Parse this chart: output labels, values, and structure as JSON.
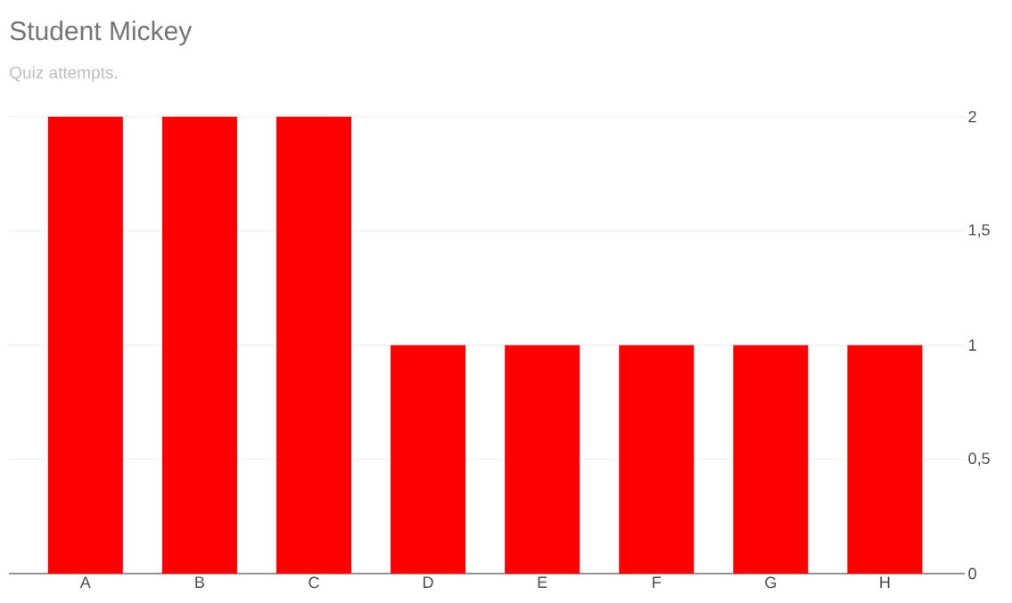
{
  "chart_data": {
    "type": "bar",
    "title": "Student Mickey",
    "subtitle": "Quiz attempts.",
    "categories": [
      "A",
      "B",
      "C",
      "D",
      "E",
      "F",
      "G",
      "H"
    ],
    "values": [
      2,
      2,
      2,
      1,
      1,
      1,
      1,
      1
    ],
    "color": "#ff0000",
    "ylim": [
      0,
      2
    ],
    "yticks": [
      0,
      {
        "value": 0.5,
        "label": "0,5"
      },
      1,
      {
        "value": 1.5,
        "label": "1,5"
      },
      2
    ],
    "grid": "y"
  }
}
